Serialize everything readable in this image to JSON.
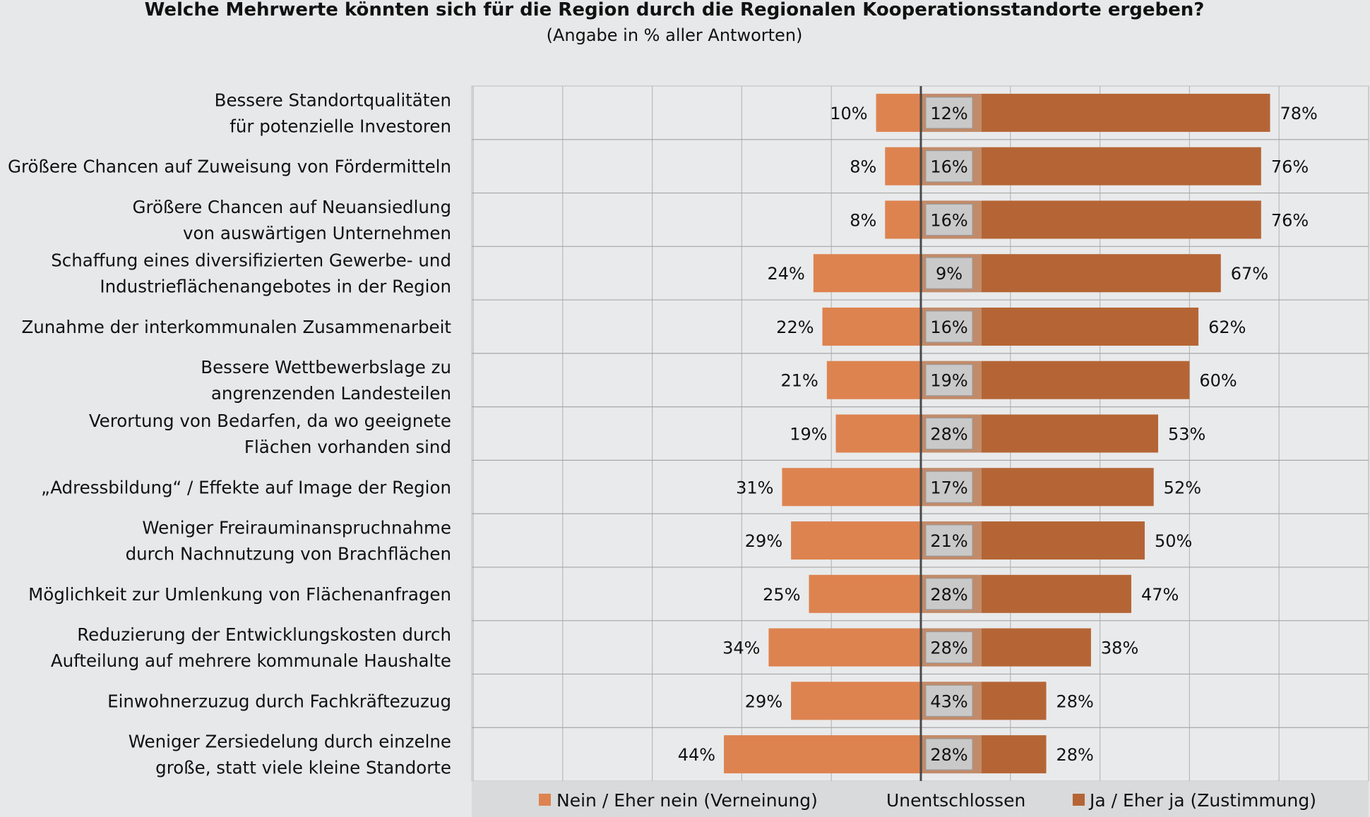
{
  "chart_data": {
    "type": "bar",
    "title": "Welche Mehrwerte könnten sich für die Region durch die Regionalen Kooperationsstandorte ergeben?",
    "subtitle": "(Angabe in % aller Antworten)",
    "categories": [
      [
        "Bessere Standortqualitäten",
        "für potenzielle Investoren"
      ],
      [
        "Größere Chancen auf Zuweisung von Fördermitteln"
      ],
      [
        "Größere Chancen auf Neuansiedlung",
        "von auswärtigen Unternehmen"
      ],
      [
        "Schaffung eines diversifizierten Gewerbe- und",
        "Industrieflächenangebotes in der Region"
      ],
      [
        "Zunahme der interkommunalen Zusammenarbeit"
      ],
      [
        "Bessere Wettbewerbslage zu",
        "angrenzenden Landesteilen"
      ],
      [
        "Verortung von Bedarfen, da wo geeignete",
        "Flächen vorhanden sind"
      ],
      [
        "„Adressbildung“ / Effekte auf Image der Region"
      ],
      [
        "Weniger Freirauminanspruchnahme",
        "durch Nachnutzung von Brachflächen"
      ],
      [
        "Möglichkeit zur Umlenkung von Flächenanfragen"
      ],
      [
        "Reduzierung der Entwicklungskosten durch",
        "Aufteilung auf mehrere kommunale Haushalte"
      ],
      [
        "Einwohnerzuzug durch Fachkräftezuzug"
      ],
      [
        "Weniger Zersiedelung durch einzelne",
        "große, statt viele kleine Standorte"
      ]
    ],
    "series": [
      {
        "name": "Nein / Eher nein (Verneinung)",
        "color": "#dd8350",
        "values": [
          10,
          8,
          8,
          24,
          22,
          21,
          19,
          31,
          29,
          25,
          34,
          29,
          44
        ]
      },
      {
        "name": "Unentschlossen",
        "color": "#c9c9c9",
        "values": [
          12,
          16,
          16,
          9,
          16,
          19,
          28,
          17,
          21,
          28,
          28,
          43,
          28
        ]
      },
      {
        "name": "Ja / Eher ja (Zustimmung)",
        "color": "#b56535",
        "values": [
          78,
          76,
          76,
          67,
          62,
          60,
          53,
          52,
          50,
          47,
          38,
          28,
          28
        ]
      }
    ],
    "unit": "%",
    "grid": true,
    "legend_position": "bottom"
  }
}
